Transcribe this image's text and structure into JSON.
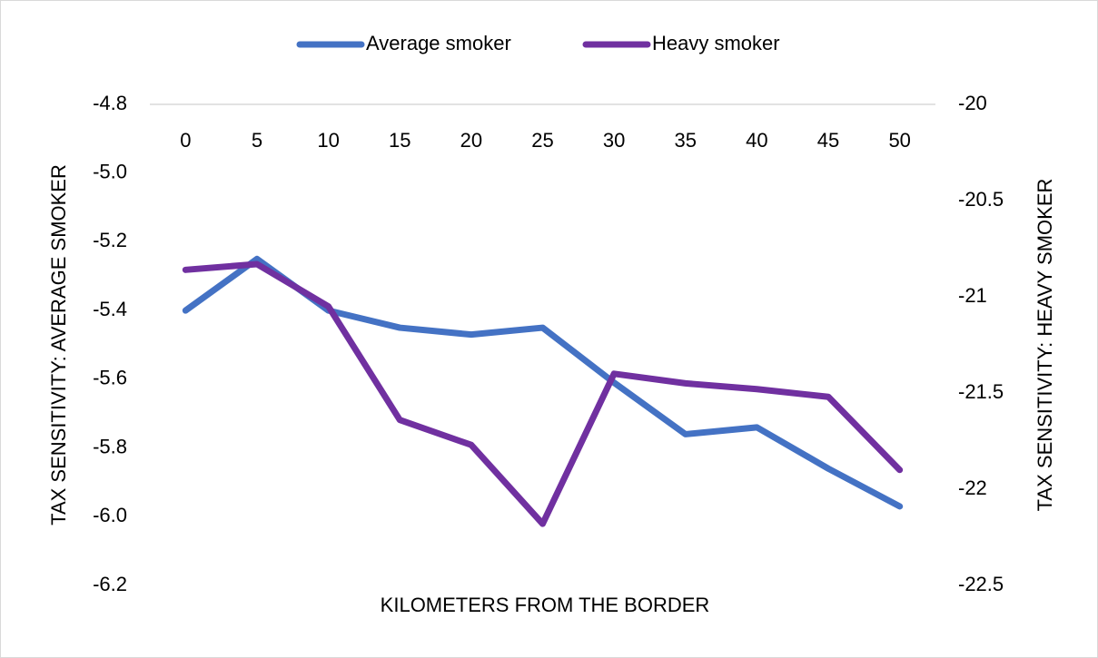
{
  "chart_data": {
    "type": "line",
    "categories": [
      "0",
      "5",
      "10",
      "15",
      "20",
      "25",
      "30",
      "35",
      "40",
      "45",
      "50"
    ],
    "xlabel": "KILOMETERS FROM THE BORDER",
    "ylabel": "TAX SENSITIVITY: AVERAGE SMOKER",
    "y2label": "TAX SENSITIVITY: HEAVY SMOKER",
    "ylim": [
      -6.2,
      -4.8
    ],
    "yticks": [
      -4.8,
      {
        "value": -5,
        "label": "-5.0"
      },
      -5.2,
      -5.4,
      -5.6,
      -5.8,
      {
        "value": -6,
        "label": "-6.0"
      },
      -6.2
    ],
    "y2lim": [
      -22.5,
      -20
    ],
    "y2ticks": [
      -20,
      -20.5,
      -21,
      -21.5,
      -22,
      -22.5
    ],
    "legend": "top",
    "series": [
      {
        "name": "Average smoker",
        "color": "#4472c4",
        "values": [
          -5.4,
          -5.25,
          -5.4,
          -5.45,
          -5.47,
          -5.45,
          -5.61,
          -5.76,
          -5.74,
          -5.86,
          -5.97
        ]
      },
      {
        "name": "Heavy smoker",
        "color": "#7030a0",
        "axis": "y2",
        "values": [
          -20.86,
          -20.83,
          -21.05,
          -21.64,
          -21.77,
          -22.18,
          -21.4,
          -21.45,
          -21.48,
          -21.52,
          -21.9
        ]
      }
    ]
  }
}
